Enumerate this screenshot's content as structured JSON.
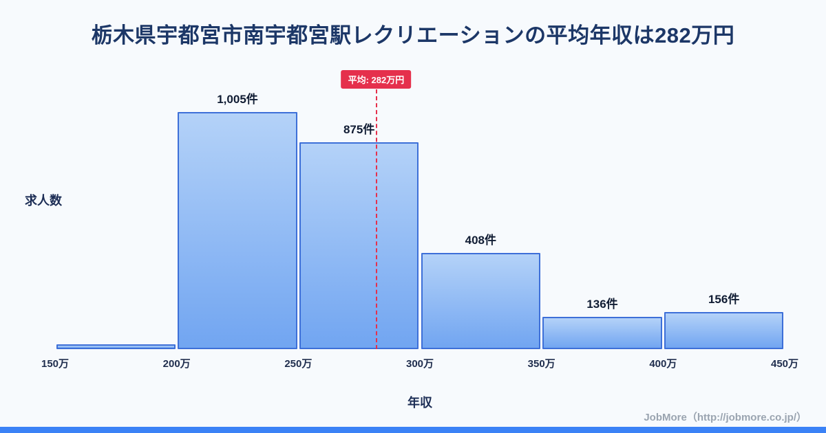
{
  "title": "栃木県宇都宮市南宇都宮駅レクリエーションの平均年収は282万円",
  "average": {
    "value": 282,
    "badge_label": "平均: 282万円"
  },
  "footer": {
    "credit": "JobMore（http://jobmore.co.jp/）"
  },
  "colors": {
    "accent_blue": "#3b82f6",
    "bar_border": "#3d6fd8",
    "bar_gradient_top": "#b4d2f8",
    "bar_gradient_bottom": "#71a5f1",
    "average_red": "#e5304c",
    "title_navy": "#1c3767"
  },
  "chart_data": {
    "type": "bar",
    "title": "栃木県宇都宮市南宇都宮駅レクリエーションの平均年収は282万円",
    "xlabel": "年収",
    "ylabel": "求人数",
    "x_range": [
      150,
      450
    ],
    "ymax": 1100,
    "grid": false,
    "legend": false,
    "average_line": {
      "x": 282,
      "label": "平均: 282万円"
    },
    "bins": [
      {
        "x0": 150,
        "x1": 200,
        "count": 20,
        "label": ""
      },
      {
        "x0": 200,
        "x1": 250,
        "count": 1005,
        "label": "1,005件"
      },
      {
        "x0": 250,
        "x1": 300,
        "count": 875,
        "label": "875件"
      },
      {
        "x0": 300,
        "x1": 350,
        "count": 408,
        "label": "408件"
      },
      {
        "x0": 350,
        "x1": 400,
        "count": 136,
        "label": "136件"
      },
      {
        "x0": 400,
        "x1": 450,
        "count": 156,
        "label": "156件"
      }
    ],
    "xticks": [
      {
        "value": 150,
        "label": "150万"
      },
      {
        "value": 200,
        "label": "200万"
      },
      {
        "value": 250,
        "label": "250万"
      },
      {
        "value": 300,
        "label": "300万"
      },
      {
        "value": 350,
        "label": "350万"
      },
      {
        "value": 400,
        "label": "400万"
      },
      {
        "value": 450,
        "label": "450万"
      }
    ]
  }
}
